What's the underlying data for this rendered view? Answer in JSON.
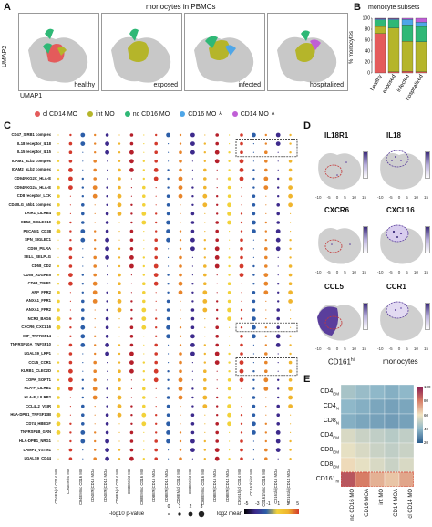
{
  "panelA": {
    "label": "A",
    "title": "monocytes in PBMCs",
    "umap1": "UMAP1",
    "umap2": "UMAP2",
    "conditions": [
      "healthy",
      "exposed",
      "infected",
      "hospitalized"
    ]
  },
  "legend": {
    "items": [
      {
        "label": "cl CD14 MO",
        "color": "#e45b5b"
      },
      {
        "label": "int MO",
        "color": "#b5b52a"
      },
      {
        "label": "nc CD16 MO",
        "color": "#2fb876"
      },
      {
        "label": "CD16 MO",
        "sub": "A",
        "color": "#4ea6e8"
      },
      {
        "label": "CD14 MO",
        "sub": "A",
        "color": "#c05fd6"
      }
    ]
  },
  "panelB": {
    "label": "B",
    "title": "monocyte subsets",
    "ylabel": "% monocytes",
    "ytick_labels": [
      "100",
      "80",
      "60",
      "40",
      "20",
      "0"
    ],
    "chart_data": {
      "type": "bar",
      "stacked": true,
      "categories": [
        "healthy",
        "exposed",
        "infected",
        "hospitalized"
      ],
      "ylim": [
        0,
        100
      ],
      "series": [
        {
          "name": "cl CD14 MO",
          "color": "#e45b5b",
          "values": [
            72,
            2,
            3,
            2
          ]
        },
        {
          "name": "int MO",
          "color": "#b5b52a",
          "values": [
            13,
            80,
            55,
            55
          ]
        },
        {
          "name": "nc CD16 MO",
          "color": "#2fb876",
          "values": [
            12,
            15,
            30,
            28
          ]
        },
        {
          "name": "CD16 MOA",
          "color": "#4ea6e8",
          "values": [
            2,
            2,
            10,
            8
          ]
        },
        {
          "name": "CD14 MOA",
          "color": "#c05fd6",
          "values": [
            1,
            1,
            2,
            7
          ]
        }
      ]
    }
  },
  "panelC": {
    "label": "C",
    "rows": [
      "CD47_SIRB1 complex",
      "IL18 receptor_IL18",
      "IL15 receptor_IL15",
      "ICAM1_aLb2 complex",
      "ICAM2_aLb2 complex",
      "CD94NKG2C_HLA-E",
      "CD94NKG2A_HLA-E",
      "CD8 receptor_LCK",
      "CD40LG_a5b1 complex",
      "LAIR1_LILRB4",
      "CD52_SIGLEC10",
      "PECAM1_CD38",
      "SPN_SIGLEC1",
      "CD99_PILRA",
      "SELL_SELPLG",
      "CD58_CD2",
      "CD55_ADGRE5",
      "CD63_TIMP1",
      "APP_FPR2",
      "ANXA1_FPR1",
      "ANXA1_FPR2",
      "NCR3_BAG6",
      "CXCR6_CXCL16",
      "MIF_TNFRSF14",
      "TNFRSF10A_TNFSF10",
      "LGALS9_LRP1",
      "CCL5_CCR1",
      "KLRB1_CLEC2D",
      "COPA_SORT1",
      "HLA-F_LILRB1",
      "HLA-F_LILRB2",
      "CCL4L2_VSIR",
      "HLA-DPB1_TNFSF13B",
      "CD74_HBEGF",
      "TNFRSF1B_GRN",
      "HLA-DPB1_NRG1",
      "LAMP1_VSTM1",
      "LGALS9_CD44"
    ],
    "columns": [
      "CD4EM|cl CD14 MO",
      "CD4EM|int MO",
      "CD4EM|nc CD16 MO",
      "CD4EM|CD16 MOA",
      "CD4EM|CD14 MOA",
      "CD8EM|cl CD14 MO",
      "CD8EM|int MO",
      "CD8EM|nc CD16 MO",
      "CD8EM|CD16 MOA",
      "CD8EM|CD14 MOA",
      "CD8EM|cl CD14 MO",
      "CD8EM|int MO",
      "CD8EM|nc CD16 MO",
      "CD8EM|CD16 MOA",
      "CD8EM|CD14 MOA",
      "CD161hi|cl CD14 MO",
      "CD161hi|int MO",
      "CD161hi|nc CD16 MO",
      "CD161hi|CD16 MOA",
      "CD161hi|CD14 MOA"
    ],
    "pvalue_label": "-log10 p-value",
    "pvalue_ticks": [
      "0",
      "1",
      "2",
      "3"
    ],
    "mean_label": "log2 mean",
    "mean_ticks": [
      "-5",
      "-3",
      "-1",
      "1",
      "3",
      "5"
    ]
  },
  "panelD": {
    "label": "D",
    "genes": [
      "IL18R1",
      "IL18",
      "CXCR6",
      "CXCL16",
      "CCL5",
      "CCR1"
    ],
    "axis_ticks": [
      "-10",
      "-5",
      "0",
      "5",
      "10",
      "15"
    ],
    "cd161_label": "CD161",
    "cd161_sup": "hi",
    "monocytes_label": "monocytes"
  },
  "panelE": {
    "label": "E",
    "rows": [
      {
        "main": "CD4",
        "sub": "EM"
      },
      {
        "main": "CD4",
        "sub": "N"
      },
      {
        "main": "CD8",
        "sub": "N"
      },
      {
        "main": "CD4",
        "sub": "EM"
      },
      {
        "main": "CD8",
        "sub": "EM"
      },
      {
        "main": "CD8",
        "sub": "EM"
      },
      {
        "main": "CD161",
        "sub": "hi"
      }
    ],
    "columns": [
      "nc CD16 MO",
      "CD16 MOA",
      "int MO",
      "CD14 MOA",
      "cl CD14 MO"
    ],
    "values": [
      [
        45,
        42,
        40,
        38,
        40
      ],
      [
        40,
        38,
        36,
        35,
        36
      ],
      [
        38,
        36,
        35,
        34,
        35
      ],
      [
        55,
        52,
        50,
        48,
        50
      ],
      [
        58,
        55,
        52,
        50,
        52
      ],
      [
        62,
        58,
        55,
        52,
        55
      ],
      [
        88,
        80,
        70,
        66,
        72
      ]
    ],
    "colorbar_ticks": [
      "100",
      "80",
      "60",
      "40",
      "20"
    ]
  }
}
